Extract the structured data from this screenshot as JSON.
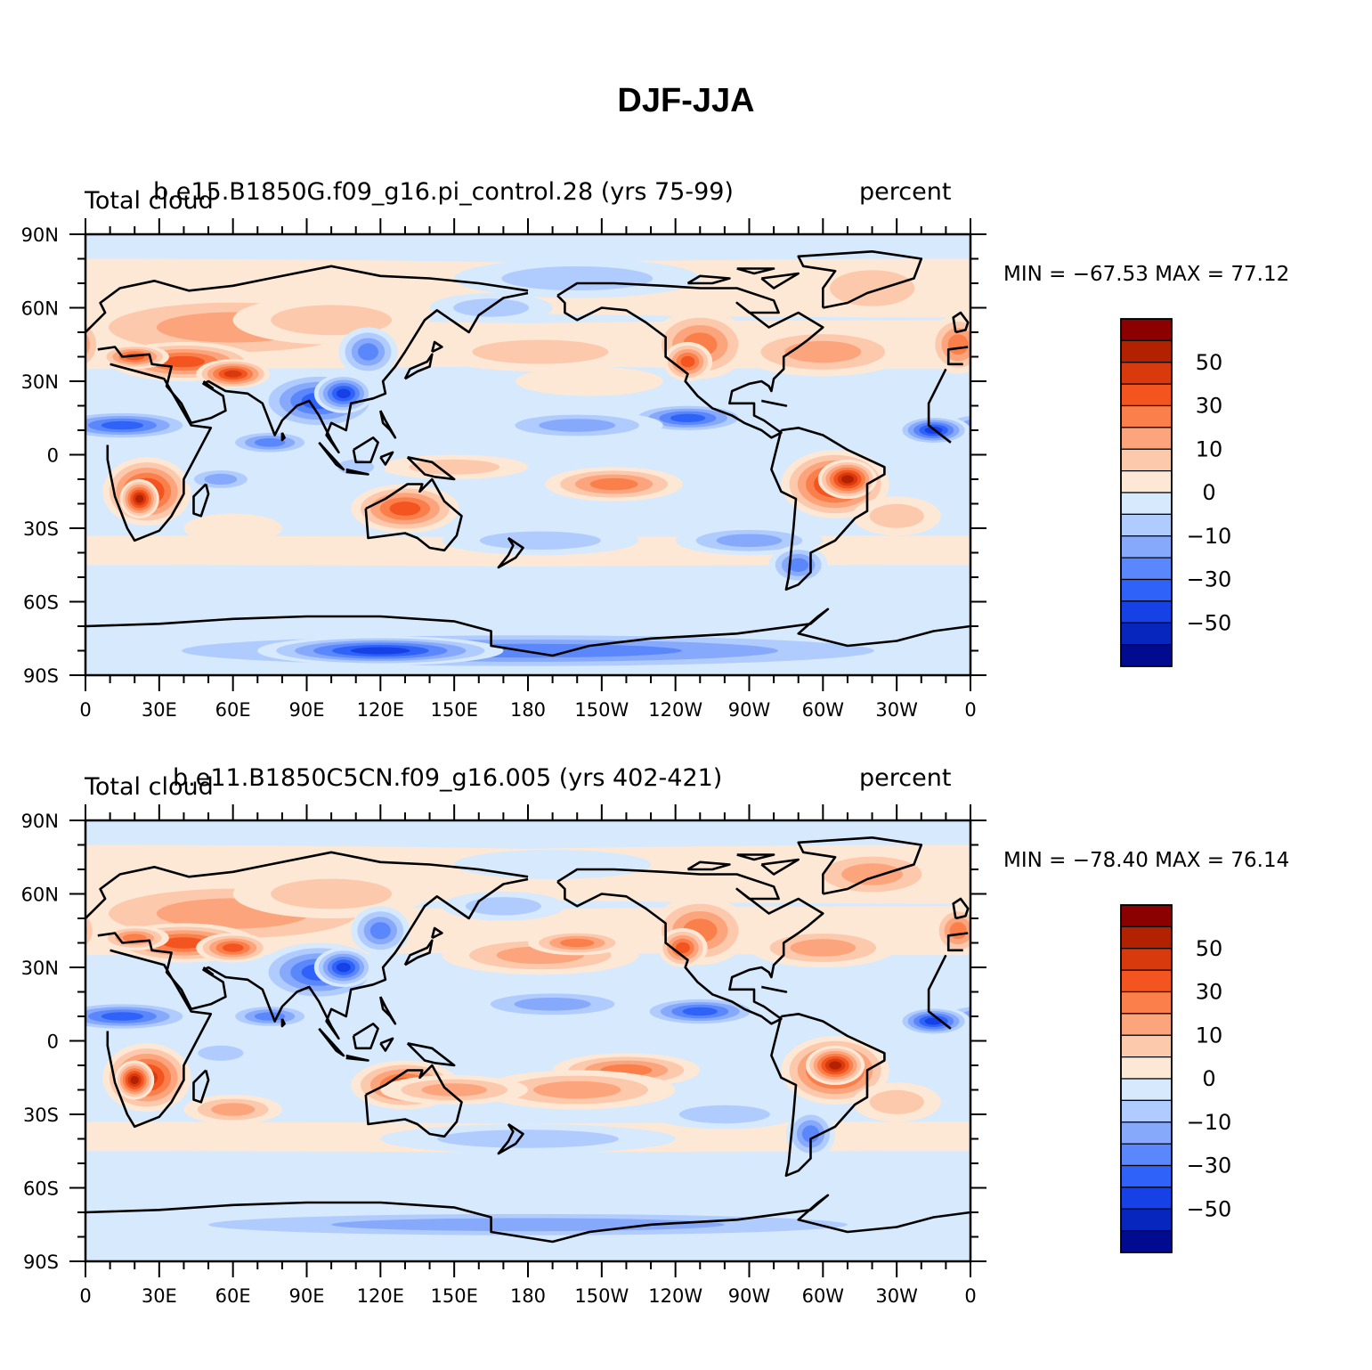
{
  "title": "DJF-JJA",
  "panels": [
    {
      "left_title": "Total cloud",
      "center_title": "b.e15.B1850G.f09_g16.pi_control.28 (yrs 75-99)",
      "right_title": "percent",
      "min_max": "MIN = −67.53 MAX =  77.12",
      "min": -67.53,
      "max": 77.12
    },
    {
      "left_title": "Total cloud",
      "center_title": "b.e11.B1850C5CN.f09_g16.005 (yrs 402-421)",
      "right_title": "percent",
      "min_max": "MIN = −78.40 MAX =  76.14",
      "min": -78.4,
      "max": 76.14
    }
  ],
  "lat_labels": [
    "90N",
    "60N",
    "30N",
    "0",
    "30S",
    "60S",
    "90S"
  ],
  "lon_labels": [
    "0",
    "30E",
    "60E",
    "90E",
    "120E",
    "150E",
    "180",
    "150W",
    "120W",
    "90W",
    "60W",
    "30W",
    "0"
  ],
  "colorbar": {
    "labels": [
      "50",
      "30",
      "10",
      "0",
      "−10",
      "−30",
      "−50"
    ],
    "colors": [
      "#8b0000",
      "#b22200",
      "#d83a0d",
      "#f4541f",
      "#fb7f4a",
      "#fca57d",
      "#fdc9ad",
      "#fde8d6",
      "#d6e9fd",
      "#b0cbfd",
      "#86a9fc",
      "#5a87fb",
      "#2f62f9",
      "#1641e6",
      "#0626be",
      "#000b8f"
    ]
  }
}
